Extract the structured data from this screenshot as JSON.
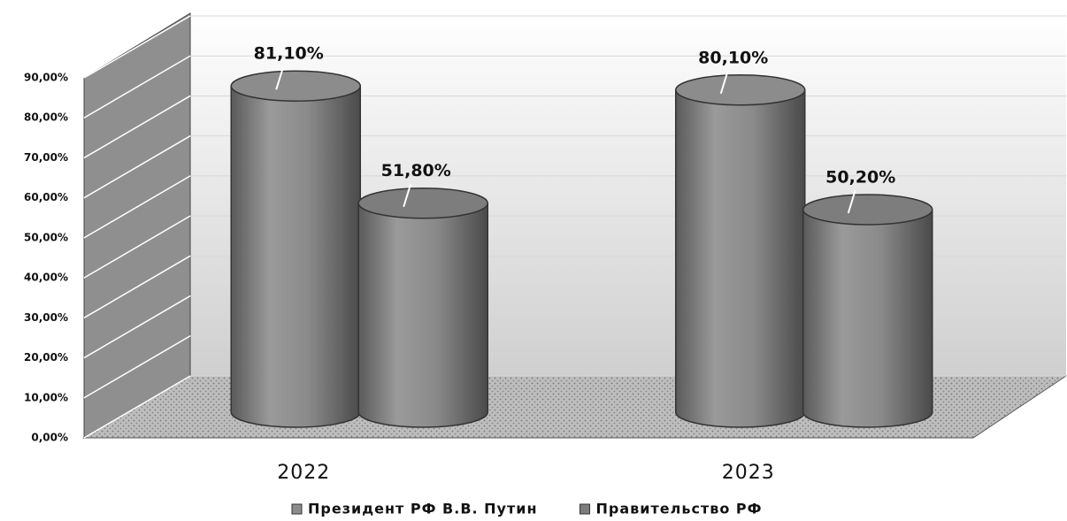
{
  "chart_data": {
    "type": "bar3d",
    "categories": [
      "2022",
      "2023"
    ],
    "series": [
      {
        "name": "Президент РФ В.В. Путин",
        "color": "#8c8c8c",
        "values": [
          81.1,
          80.1
        ],
        "value_labels": [
          "81,10%",
          "80,10%"
        ]
      },
      {
        "name": "Правительство РФ",
        "color": "#7d7d7d",
        "values": [
          51.8,
          50.2
        ],
        "value_labels": [
          "51,80%",
          "50,20%"
        ]
      }
    ],
    "ylim": [
      0,
      90
    ],
    "yticks": [
      {
        "value": 0,
        "label": "0,00%"
      },
      {
        "value": 10,
        "label": "10,00%"
      },
      {
        "value": 20,
        "label": "20,00%"
      },
      {
        "value": 30,
        "label": "30,00%"
      },
      {
        "value": 40,
        "label": "40,00%"
      },
      {
        "value": 50,
        "label": "50,00%"
      },
      {
        "value": 60,
        "label": "60,00%"
      },
      {
        "value": 70,
        "label": "70,00%"
      },
      {
        "value": 80,
        "label": "80,00%"
      },
      {
        "value": 90,
        "label": "90,00%"
      }
    ],
    "grid": true
  }
}
